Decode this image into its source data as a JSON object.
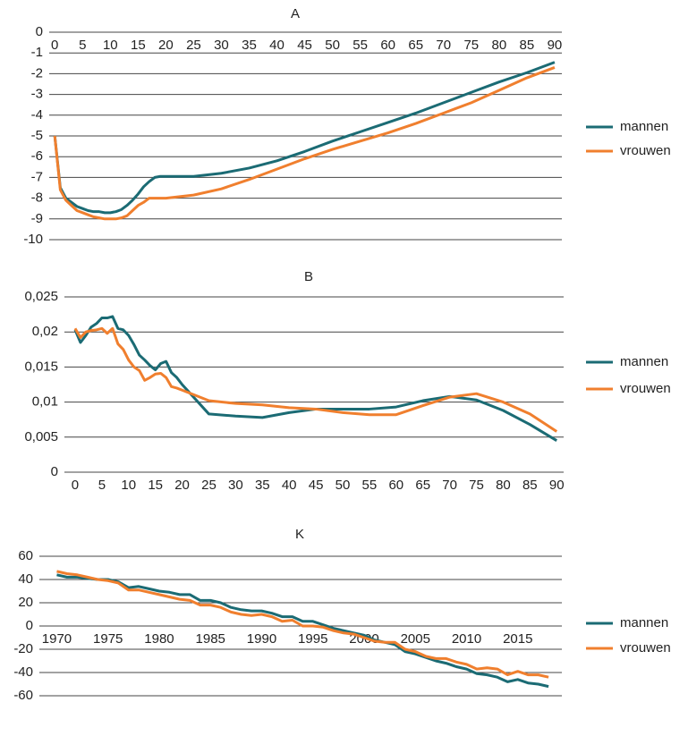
{
  "chart_data": [
    {
      "type": "line",
      "title": "A",
      "x": [
        0,
        1,
        2,
        3,
        4,
        5,
        6,
        7,
        8,
        9,
        10,
        11,
        12,
        13,
        14,
        15,
        16,
        17,
        18,
        19,
        20,
        25,
        30,
        35,
        40,
        45,
        50,
        55,
        60,
        65,
        70,
        75,
        80,
        85,
        90
      ],
      "series": [
        {
          "name": "mannen",
          "color": "#1b6b74",
          "values": [
            -5,
            -7.5,
            -8,
            -8.2,
            -8.4,
            -8.5,
            -8.6,
            -8.65,
            -8.65,
            -8.7,
            -8.7,
            -8.65,
            -8.55,
            -8.35,
            -8.1,
            -7.8,
            -7.45,
            -7.2,
            -7,
            -6.95,
            -6.95,
            -6.95,
            -6.8,
            -6.55,
            -6.2,
            -5.75,
            -5.25,
            -4.8,
            -4.35,
            -3.9,
            -3.4,
            -2.9,
            -2.4,
            -1.95,
            -1.45
          ]
        },
        {
          "name": "vrouwen",
          "color": "#f07f2e",
          "values": [
            -5,
            -7.6,
            -8.1,
            -8.35,
            -8.6,
            -8.7,
            -8.8,
            -8.9,
            -8.95,
            -9,
            -9,
            -9,
            -8.95,
            -8.85,
            -8.6,
            -8.35,
            -8.2,
            -8,
            -8,
            -8,
            -8,
            -7.85,
            -7.55,
            -7.1,
            -6.6,
            -6.1,
            -5.65,
            -5.25,
            -4.85,
            -4.4,
            -3.9,
            -3.4,
            -2.8,
            -2.2,
            -1.7
          ]
        }
      ],
      "xlim": [
        -1,
        91.3
      ],
      "xticks": [
        0,
        5,
        10,
        15,
        20,
        25,
        30,
        35,
        40,
        45,
        50,
        55,
        60,
        65,
        70,
        75,
        80,
        85,
        90
      ],
      "ylim": [
        -10,
        0
      ],
      "yticks": [
        0,
        -1,
        -2,
        -3,
        -4,
        -5,
        -6,
        -7,
        -8,
        -9,
        -10
      ],
      "grid": true
    },
    {
      "type": "line",
      "title": "B",
      "x": [
        0,
        1,
        2,
        3,
        4,
        5,
        6,
        7,
        8,
        9,
        10,
        11,
        12,
        13,
        14,
        15,
        16,
        17,
        18,
        19,
        20,
        25,
        30,
        35,
        40,
        45,
        50,
        55,
        60,
        65,
        70,
        75,
        80,
        85,
        90
      ],
      "series": [
        {
          "name": "mannen",
          "color": "#1b6b74",
          "values": [
            0.0203,
            0.0185,
            0.0195,
            0.0207,
            0.0212,
            0.022,
            0.022,
            0.0222,
            0.0205,
            0.0203,
            0.0195,
            0.0182,
            0.0167,
            0.016,
            0.0152,
            0.0146,
            0.0155,
            0.0158,
            0.0142,
            0.0135,
            0.0125,
            0.0083,
            0.008,
            0.0078,
            0.0085,
            0.009,
            0.009,
            0.009,
            0.0093,
            0.0102,
            0.0108,
            0.0103,
            0.0088,
            0.0068,
            0.0045
          ]
        },
        {
          "name": "vrouwen",
          "color": "#f07f2e",
          "values": [
            0.0205,
            0.0192,
            0.02,
            0.0202,
            0.0203,
            0.0205,
            0.0198,
            0.0205,
            0.0183,
            0.0175,
            0.016,
            0.015,
            0.0145,
            0.0131,
            0.0135,
            0.014,
            0.0141,
            0.0135,
            0.0122,
            0.012,
            0.0117,
            0.0102,
            0.0098,
            0.0096,
            0.0092,
            0.009,
            0.0085,
            0.0082,
            0.0082,
            0.0095,
            0.0107,
            0.0112,
            0.01,
            0.0083,
            0.0058
          ]
        }
      ],
      "xlim": [
        -2,
        91.3
      ],
      "xticks": [
        0,
        5,
        10,
        15,
        20,
        25,
        30,
        35,
        40,
        45,
        50,
        55,
        60,
        65,
        70,
        75,
        80,
        85,
        90
      ],
      "ylim": [
        0,
        0.025
      ],
      "yticks": [
        0,
        {
          "value": 0.005,
          "label": "0,005"
        },
        {
          "value": 0.01,
          "label": "0,01"
        },
        {
          "value": 0.015,
          "label": "0,015"
        },
        {
          "value": 0.02,
          "label": "0,02"
        },
        {
          "value": 0.025,
          "label": "0,025"
        }
      ],
      "grid": true
    },
    {
      "type": "line",
      "title": "K",
      "x": [
        1970,
        1971,
        1972,
        1973,
        1974,
        1975,
        1976,
        1977,
        1978,
        1979,
        1980,
        1981,
        1982,
        1983,
        1984,
        1985,
        1986,
        1987,
        1988,
        1989,
        1990,
        1991,
        1992,
        1993,
        1994,
        1995,
        1996,
        1997,
        1998,
        1999,
        2000,
        2001,
        2002,
        2003,
        2004,
        2005,
        2006,
        2007,
        2008,
        2009,
        2010,
        2011,
        2012,
        2013,
        2014,
        2015,
        2016,
        2017,
        2018
      ],
      "series": [
        {
          "name": "mannen",
          "color": "#1b6b74",
          "values": [
            44,
            42,
            42,
            41,
            40,
            40,
            38,
            33,
            34,
            32,
            30,
            29,
            27,
            27,
            22,
            22,
            20,
            16,
            14,
            13,
            13,
            11,
            8,
            8,
            4,
            4,
            1,
            -2,
            -4,
            -6,
            -8,
            -12,
            -14,
            -16,
            -22,
            -24,
            -27,
            -30,
            -32,
            -35,
            -37,
            -41,
            -42,
            -44,
            -48,
            -46,
            -49,
            -50,
            -52
          ]
        },
        {
          "name": "vrouwen",
          "color": "#f07f2e",
          "values": [
            47,
            45,
            44,
            42,
            40,
            39,
            37,
            31,
            31,
            29,
            27,
            25,
            23,
            22,
            18,
            18,
            16,
            12,
            10,
            9,
            10,
            8,
            4,
            5,
            0,
            0,
            -1,
            -4,
            -6,
            -7,
            -10,
            -13,
            -14,
            -14,
            -20,
            -22,
            -26,
            -28,
            -28,
            -31,
            -33,
            -37,
            -36,
            -37,
            -42,
            -39,
            -42,
            -42,
            -44
          ]
        }
      ],
      "xlim": [
        1968.3,
        2019.3
      ],
      "xticks": [
        1970,
        1975,
        1980,
        1985,
        1990,
        1995,
        2000,
        2005,
        2010,
        2015
      ],
      "ylim": [
        -60,
        60
      ],
      "yticks": [
        60,
        40,
        20,
        0,
        -20,
        -40,
        -60
      ],
      "grid": true
    }
  ]
}
